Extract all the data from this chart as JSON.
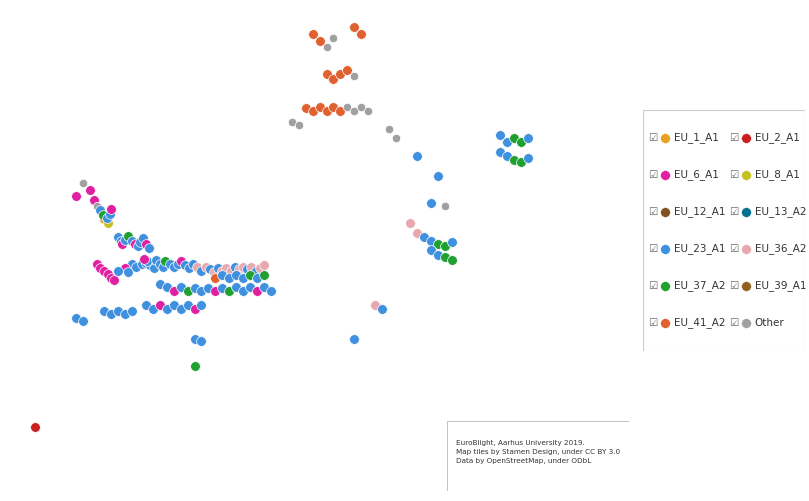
{
  "figure_width": 8.09,
  "figure_height": 5.01,
  "dpi": 100,
  "background_color": "#ffffff",
  "ocean_color": "#a8c8d8",
  "land_color": "#d8e4b8",
  "border_color": "#b0b090",
  "map_extent": [
    -11,
    35,
    34,
    71
  ],
  "legend_entries": [
    {
      "label": "EU_1_A1",
      "color": "#E8A020"
    },
    {
      "label": "EU_2_A1",
      "color": "#CC2020"
    },
    {
      "label": "EU_6_A1",
      "color": "#E020A0"
    },
    {
      "label": "EU_8_A1",
      "color": "#C8C020"
    },
    {
      "label": "EU_12_A1",
      "color": "#805020"
    },
    {
      "label": "EU_13_A2",
      "color": "#007090"
    },
    {
      "label": "EU_23_A1",
      "color": "#4090E0"
    },
    {
      "label": "EU_36_A2",
      "color": "#E8A8B0"
    },
    {
      "label": "EU_37_A2",
      "color": "#20A030"
    },
    {
      "label": "EU_39_A1",
      "color": "#906020"
    },
    {
      "label": "EU_41_A2",
      "color": "#E06030"
    },
    {
      "label": "Other",
      "color": "#A0A0A0"
    }
  ],
  "dots_lonlat": [
    {
      "lon": -8.5,
      "lat": 39.5,
      "color": "#CC2020",
      "size": 7
    },
    {
      "lon": -5.5,
      "lat": 56.5,
      "color": "#E020A0",
      "size": 7
    },
    {
      "lon": -4.5,
      "lat": 57.0,
      "color": "#E020A0",
      "size": 7
    },
    {
      "lon": -4.2,
      "lat": 56.2,
      "color": "#E020A0",
      "size": 7
    },
    {
      "lon": -4.0,
      "lat": 55.8,
      "color": "#A0A0A0",
      "size": 6
    },
    {
      "lon": -5.0,
      "lat": 57.5,
      "color": "#A0A0A0",
      "size": 6
    },
    {
      "lon": -3.8,
      "lat": 55.5,
      "color": "#4090E0",
      "size": 7
    },
    {
      "lon": -3.5,
      "lat": 54.8,
      "color": "#E8A020",
      "size": 7
    },
    {
      "lon": -3.2,
      "lat": 54.5,
      "color": "#C8C020",
      "size": 7
    },
    {
      "lon": -3.6,
      "lat": 55.1,
      "color": "#20A030",
      "size": 7
    },
    {
      "lon": -3.3,
      "lat": 54.9,
      "color": "#4090E0",
      "size": 7
    },
    {
      "lon": -3.1,
      "lat": 55.2,
      "color": "#4090E0",
      "size": 7
    },
    {
      "lon": -3.0,
      "lat": 55.6,
      "color": "#E020A0",
      "size": 7
    },
    {
      "lon": -4.0,
      "lat": 51.5,
      "color": "#E020A0",
      "size": 7
    },
    {
      "lon": -3.8,
      "lat": 51.2,
      "color": "#E020A0",
      "size": 7
    },
    {
      "lon": -3.5,
      "lat": 51.0,
      "color": "#E020A0",
      "size": 7
    },
    {
      "lon": -3.2,
      "lat": 50.8,
      "color": "#E020A0",
      "size": 7
    },
    {
      "lon": -3.0,
      "lat": 50.5,
      "color": "#E020A0",
      "size": 7
    },
    {
      "lon": -2.8,
      "lat": 50.3,
      "color": "#E020A0",
      "size": 7
    },
    {
      "lon": -2.5,
      "lat": 53.5,
      "color": "#4090E0",
      "size": 7
    },
    {
      "lon": -2.3,
      "lat": 53.2,
      "color": "#4090E0",
      "size": 7
    },
    {
      "lon": -2.2,
      "lat": 53.0,
      "color": "#E020A0",
      "size": 7
    },
    {
      "lon": -2.0,
      "lat": 53.3,
      "color": "#4090E0",
      "size": 7
    },
    {
      "lon": -1.8,
      "lat": 53.6,
      "color": "#20A030",
      "size": 7
    },
    {
      "lon": -1.5,
      "lat": 53.2,
      "color": "#4090E0",
      "size": 7
    },
    {
      "lon": -1.3,
      "lat": 53.0,
      "color": "#E020A0",
      "size": 7
    },
    {
      "lon": -1.1,
      "lat": 52.8,
      "color": "#4090E0",
      "size": 7
    },
    {
      "lon": -0.9,
      "lat": 53.1,
      "color": "#4090E0",
      "size": 7
    },
    {
      "lon": -0.7,
      "lat": 53.4,
      "color": "#4090E0",
      "size": 7
    },
    {
      "lon": -0.5,
      "lat": 53.0,
      "color": "#E020A0",
      "size": 7
    },
    {
      "lon": -0.3,
      "lat": 52.7,
      "color": "#4090E0",
      "size": 7
    },
    {
      "lon": -1.5,
      "lat": 51.5,
      "color": "#4090E0",
      "size": 7
    },
    {
      "lon": -2.0,
      "lat": 51.2,
      "color": "#E020A0",
      "size": 7
    },
    {
      "lon": -2.5,
      "lat": 51.0,
      "color": "#4090E0",
      "size": 7
    },
    {
      "lon": -1.8,
      "lat": 50.9,
      "color": "#4090E0",
      "size": 7
    },
    {
      "lon": -1.2,
      "lat": 51.3,
      "color": "#4090E0",
      "size": 7
    },
    {
      "lon": -0.8,
      "lat": 51.5,
      "color": "#4090E0",
      "size": 7
    },
    {
      "lon": -0.5,
      "lat": 51.6,
      "color": "#4090E0",
      "size": 7
    },
    {
      "lon": -0.2,
      "lat": 51.4,
      "color": "#4090E0",
      "size": 7
    },
    {
      "lon": 0.1,
      "lat": 51.2,
      "color": "#4090E0",
      "size": 7
    },
    {
      "lon": -0.4,
      "lat": 51.7,
      "color": "#4090E0",
      "size": 7
    },
    {
      "lon": -0.6,
      "lat": 51.9,
      "color": "#E020A0",
      "size": 7
    },
    {
      "lon": 0.2,
      "lat": 51.8,
      "color": "#4090E0",
      "size": 7
    },
    {
      "lon": 0.5,
      "lat": 51.5,
      "color": "#4090E0",
      "size": 7
    },
    {
      "lon": 0.7,
      "lat": 51.3,
      "color": "#4090E0",
      "size": 7
    },
    {
      "lon": 0.9,
      "lat": 51.7,
      "color": "#20A030",
      "size": 7
    },
    {
      "lon": 1.2,
      "lat": 51.5,
      "color": "#4090E0",
      "size": 7
    },
    {
      "lon": 1.5,
      "lat": 51.3,
      "color": "#4090E0",
      "size": 7
    },
    {
      "lon": 1.8,
      "lat": 51.5,
      "color": "#4090E0",
      "size": 7
    },
    {
      "lon": 2.0,
      "lat": 51.7,
      "color": "#E020A0",
      "size": 7
    },
    {
      "lon": 2.3,
      "lat": 51.4,
      "color": "#4090E0",
      "size": 7
    },
    {
      "lon": 2.6,
      "lat": 51.2,
      "color": "#4090E0",
      "size": 7
    },
    {
      "lon": 2.9,
      "lat": 51.5,
      "color": "#4090E0",
      "size": 7
    },
    {
      "lon": 3.2,
      "lat": 51.3,
      "color": "#E8A8B0",
      "size": 7
    },
    {
      "lon": 3.5,
      "lat": 51.0,
      "color": "#4090E0",
      "size": 7
    },
    {
      "lon": 3.8,
      "lat": 51.3,
      "color": "#E8A8B0",
      "size": 7
    },
    {
      "lon": 4.1,
      "lat": 51.1,
      "color": "#4090E0",
      "size": 7
    },
    {
      "lon": 4.4,
      "lat": 50.9,
      "color": "#E8A8B0",
      "size": 7
    },
    {
      "lon": 4.7,
      "lat": 51.2,
      "color": "#4090E0",
      "size": 7
    },
    {
      "lon": 5.0,
      "lat": 51.0,
      "color": "#E8A8B0",
      "size": 7
    },
    {
      "lon": 5.3,
      "lat": 51.2,
      "color": "#E8A8B0",
      "size": 7
    },
    {
      "lon": 5.6,
      "lat": 51.0,
      "color": "#E8A8B0",
      "size": 7
    },
    {
      "lon": 5.9,
      "lat": 51.3,
      "color": "#4090E0",
      "size": 7
    },
    {
      "lon": 6.2,
      "lat": 51.1,
      "color": "#E8A8B0",
      "size": 7
    },
    {
      "lon": 6.5,
      "lat": 51.3,
      "color": "#E8A8B0",
      "size": 7
    },
    {
      "lon": 6.8,
      "lat": 51.1,
      "color": "#4090E0",
      "size": 7
    },
    {
      "lon": 7.1,
      "lat": 51.3,
      "color": "#E8A8B0",
      "size": 7
    },
    {
      "lon": 7.4,
      "lat": 51.0,
      "color": "#4090E0",
      "size": 7
    },
    {
      "lon": 7.7,
      "lat": 51.2,
      "color": "#E8A8B0",
      "size": 7
    },
    {
      "lon": 8.0,
      "lat": 51.4,
      "color": "#E8A8B0",
      "size": 7
    },
    {
      "lon": 0.5,
      "lat": 50.0,
      "color": "#4090E0",
      "size": 7
    },
    {
      "lon": 1.0,
      "lat": 49.8,
      "color": "#4090E0",
      "size": 7
    },
    {
      "lon": 1.5,
      "lat": 49.5,
      "color": "#E020A0",
      "size": 7
    },
    {
      "lon": 2.0,
      "lat": 49.8,
      "color": "#4090E0",
      "size": 7
    },
    {
      "lon": 2.5,
      "lat": 49.5,
      "color": "#20A030",
      "size": 7
    },
    {
      "lon": 3.0,
      "lat": 49.7,
      "color": "#4090E0",
      "size": 7
    },
    {
      "lon": 3.5,
      "lat": 49.5,
      "color": "#4090E0",
      "size": 7
    },
    {
      "lon": 4.0,
      "lat": 49.7,
      "color": "#4090E0",
      "size": 7
    },
    {
      "lon": 4.5,
      "lat": 49.5,
      "color": "#E020A0",
      "size": 7
    },
    {
      "lon": 5.0,
      "lat": 49.7,
      "color": "#4090E0",
      "size": 7
    },
    {
      "lon": 5.5,
      "lat": 49.5,
      "color": "#20A030",
      "size": 7
    },
    {
      "lon": 6.0,
      "lat": 49.8,
      "color": "#4090E0",
      "size": 7
    },
    {
      "lon": 6.5,
      "lat": 49.5,
      "color": "#4090E0",
      "size": 7
    },
    {
      "lon": 7.0,
      "lat": 49.8,
      "color": "#4090E0",
      "size": 7
    },
    {
      "lon": 7.5,
      "lat": 49.5,
      "color": "#E020A0",
      "size": 7
    },
    {
      "lon": 8.0,
      "lat": 49.8,
      "color": "#4090E0",
      "size": 7
    },
    {
      "lon": 8.5,
      "lat": 49.5,
      "color": "#4090E0",
      "size": 7
    },
    {
      "lon": -0.5,
      "lat": 48.5,
      "color": "#4090E0",
      "size": 7
    },
    {
      "lon": 0.0,
      "lat": 48.2,
      "color": "#4090E0",
      "size": 7
    },
    {
      "lon": 0.5,
      "lat": 48.5,
      "color": "#E020A0",
      "size": 7
    },
    {
      "lon": 1.0,
      "lat": 48.2,
      "color": "#4090E0",
      "size": 7
    },
    {
      "lon": 1.5,
      "lat": 48.5,
      "color": "#4090E0",
      "size": 7
    },
    {
      "lon": 2.0,
      "lat": 48.2,
      "color": "#4090E0",
      "size": 7
    },
    {
      "lon": 2.5,
      "lat": 48.5,
      "color": "#4090E0",
      "size": 7
    },
    {
      "lon": 3.0,
      "lat": 48.2,
      "color": "#E020A0",
      "size": 7
    },
    {
      "lon": 3.5,
      "lat": 48.5,
      "color": "#4090E0",
      "size": 7
    },
    {
      "lon": -3.5,
      "lat": 48.0,
      "color": "#4090E0",
      "size": 7
    },
    {
      "lon": -3.0,
      "lat": 47.8,
      "color": "#4090E0",
      "size": 7
    },
    {
      "lon": -2.5,
      "lat": 48.0,
      "color": "#4090E0",
      "size": 7
    },
    {
      "lon": -2.0,
      "lat": 47.8,
      "color": "#4090E0",
      "size": 7
    },
    {
      "lon": -1.5,
      "lat": 48.0,
      "color": "#4090E0",
      "size": 7
    },
    {
      "lon": 4.5,
      "lat": 50.5,
      "color": "#E06030",
      "size": 7
    },
    {
      "lon": 5.0,
      "lat": 50.7,
      "color": "#4090E0",
      "size": 7
    },
    {
      "lon": 5.5,
      "lat": 50.5,
      "color": "#4090E0",
      "size": 7
    },
    {
      "lon": 6.0,
      "lat": 50.7,
      "color": "#4090E0",
      "size": 7
    },
    {
      "lon": 6.5,
      "lat": 50.5,
      "color": "#4090E0",
      "size": 7
    },
    {
      "lon": 7.0,
      "lat": 50.7,
      "color": "#20A030",
      "size": 7
    },
    {
      "lon": 7.5,
      "lat": 50.5,
      "color": "#4090E0",
      "size": 7
    },
    {
      "lon": 8.0,
      "lat": 50.7,
      "color": "#20A030",
      "size": 7
    },
    {
      "lon": -5.5,
      "lat": 47.5,
      "color": "#4090E0",
      "size": 7
    },
    {
      "lon": -5.0,
      "lat": 47.3,
      "color": "#4090E0",
      "size": 7
    },
    {
      "lon": 12.5,
      "lat": 65.5,
      "color": "#E06030",
      "size": 7
    },
    {
      "lon": 13.0,
      "lat": 65.2,
      "color": "#E06030",
      "size": 7
    },
    {
      "lon": 13.5,
      "lat": 65.5,
      "color": "#E06030",
      "size": 7
    },
    {
      "lon": 14.0,
      "lat": 65.8,
      "color": "#E06030",
      "size": 7
    },
    {
      "lon": 14.5,
      "lat": 65.4,
      "color": "#A0A0A0",
      "size": 6
    },
    {
      "lon": 11.0,
      "lat": 63.0,
      "color": "#E06030",
      "size": 7
    },
    {
      "lon": 11.5,
      "lat": 62.8,
      "color": "#E06030",
      "size": 7
    },
    {
      "lon": 12.0,
      "lat": 63.1,
      "color": "#E06030",
      "size": 7
    },
    {
      "lon": 12.5,
      "lat": 62.8,
      "color": "#E06030",
      "size": 7
    },
    {
      "lon": 13.0,
      "lat": 63.1,
      "color": "#E06030",
      "size": 7
    },
    {
      "lon": 13.5,
      "lat": 62.8,
      "color": "#E06030",
      "size": 7
    },
    {
      "lon": 14.0,
      "lat": 63.1,
      "color": "#A0A0A0",
      "size": 6
    },
    {
      "lon": 14.5,
      "lat": 62.8,
      "color": "#A0A0A0",
      "size": 6
    },
    {
      "lon": 15.0,
      "lat": 63.1,
      "color": "#A0A0A0",
      "size": 6
    },
    {
      "lon": 15.5,
      "lat": 62.8,
      "color": "#A0A0A0",
      "size": 6
    },
    {
      "lon": 10.0,
      "lat": 62.0,
      "color": "#A0A0A0",
      "size": 6
    },
    {
      "lon": 10.5,
      "lat": 61.8,
      "color": "#A0A0A0",
      "size": 6
    },
    {
      "lon": 19.0,
      "lat": 59.5,
      "color": "#4090E0",
      "size": 7
    },
    {
      "lon": 20.0,
      "lat": 56.0,
      "color": "#4090E0",
      "size": 7
    },
    {
      "lon": 21.0,
      "lat": 55.8,
      "color": "#A0A0A0",
      "size": 6
    },
    {
      "lon": 20.5,
      "lat": 58.0,
      "color": "#4090E0",
      "size": 7
    },
    {
      "lon": 18.5,
      "lat": 54.5,
      "color": "#E8A8B0",
      "size": 7
    },
    {
      "lon": 19.0,
      "lat": 53.8,
      "color": "#E8A8B0",
      "size": 7
    },
    {
      "lon": 19.5,
      "lat": 53.5,
      "color": "#4090E0",
      "size": 7
    },
    {
      "lon": 20.0,
      "lat": 53.2,
      "color": "#4090E0",
      "size": 7
    },
    {
      "lon": 20.5,
      "lat": 53.0,
      "color": "#20A030",
      "size": 7
    },
    {
      "lon": 21.0,
      "lat": 52.8,
      "color": "#20A030",
      "size": 7
    },
    {
      "lon": 21.5,
      "lat": 53.1,
      "color": "#4090E0",
      "size": 7
    },
    {
      "lon": 20.0,
      "lat": 52.5,
      "color": "#4090E0",
      "size": 7
    },
    {
      "lon": 20.5,
      "lat": 52.2,
      "color": "#4090E0",
      "size": 7
    },
    {
      "lon": 21.0,
      "lat": 52.0,
      "color": "#20A030",
      "size": 7
    },
    {
      "lon": 21.5,
      "lat": 51.8,
      "color": "#20A030",
      "size": 7
    },
    {
      "lon": 16.0,
      "lat": 48.5,
      "color": "#E8A8B0",
      "size": 7
    },
    {
      "lon": 16.5,
      "lat": 48.2,
      "color": "#4090E0",
      "size": 7
    },
    {
      "lon": 3.0,
      "lat": 46.0,
      "color": "#4090E0",
      "size": 7
    },
    {
      "lon": 3.5,
      "lat": 45.8,
      "color": "#4090E0",
      "size": 7
    },
    {
      "lon": 3.0,
      "lat": 44.0,
      "color": "#20A030",
      "size": 7
    },
    {
      "lon": 14.5,
      "lat": 46.0,
      "color": "#4090E0",
      "size": 7
    },
    {
      "lon": 17.0,
      "lat": 61.5,
      "color": "#A0A0A0",
      "size": 6
    },
    {
      "lon": 17.5,
      "lat": 60.8,
      "color": "#A0A0A0",
      "size": 6
    },
    {
      "lon": 25.0,
      "lat": 61.0,
      "color": "#4090E0",
      "size": 7
    },
    {
      "lon": 25.5,
      "lat": 60.5,
      "color": "#4090E0",
      "size": 7
    },
    {
      "lon": 26.0,
      "lat": 60.8,
      "color": "#20A030",
      "size": 7
    },
    {
      "lon": 26.5,
      "lat": 60.5,
      "color": "#20A030",
      "size": 7
    },
    {
      "lon": 27.0,
      "lat": 60.8,
      "color": "#4090E0",
      "size": 7
    },
    {
      "lon": 25.0,
      "lat": 59.8,
      "color": "#4090E0",
      "size": 7
    },
    {
      "lon": 25.5,
      "lat": 59.5,
      "color": "#4090E0",
      "size": 7
    },
    {
      "lon": 26.0,
      "lat": 59.2,
      "color": "#20A030",
      "size": 7
    },
    {
      "lon": 26.5,
      "lat": 59.0,
      "color": "#20A030",
      "size": 7
    },
    {
      "lon": 27.0,
      "lat": 59.3,
      "color": "#4090E0",
      "size": 7
    },
    {
      "lon": 11.5,
      "lat": 68.5,
      "color": "#E06030",
      "size": 7
    },
    {
      "lon": 12.0,
      "lat": 68.0,
      "color": "#E06030",
      "size": 7
    },
    {
      "lon": 12.5,
      "lat": 67.5,
      "color": "#A0A0A0",
      "size": 6
    },
    {
      "lon": 13.0,
      "lat": 68.2,
      "color": "#A0A0A0",
      "size": 6
    },
    {
      "lon": 14.5,
      "lat": 69.0,
      "color": "#E06030",
      "size": 7
    },
    {
      "lon": 15.0,
      "lat": 68.5,
      "color": "#E06030",
      "size": 7
    }
  ]
}
